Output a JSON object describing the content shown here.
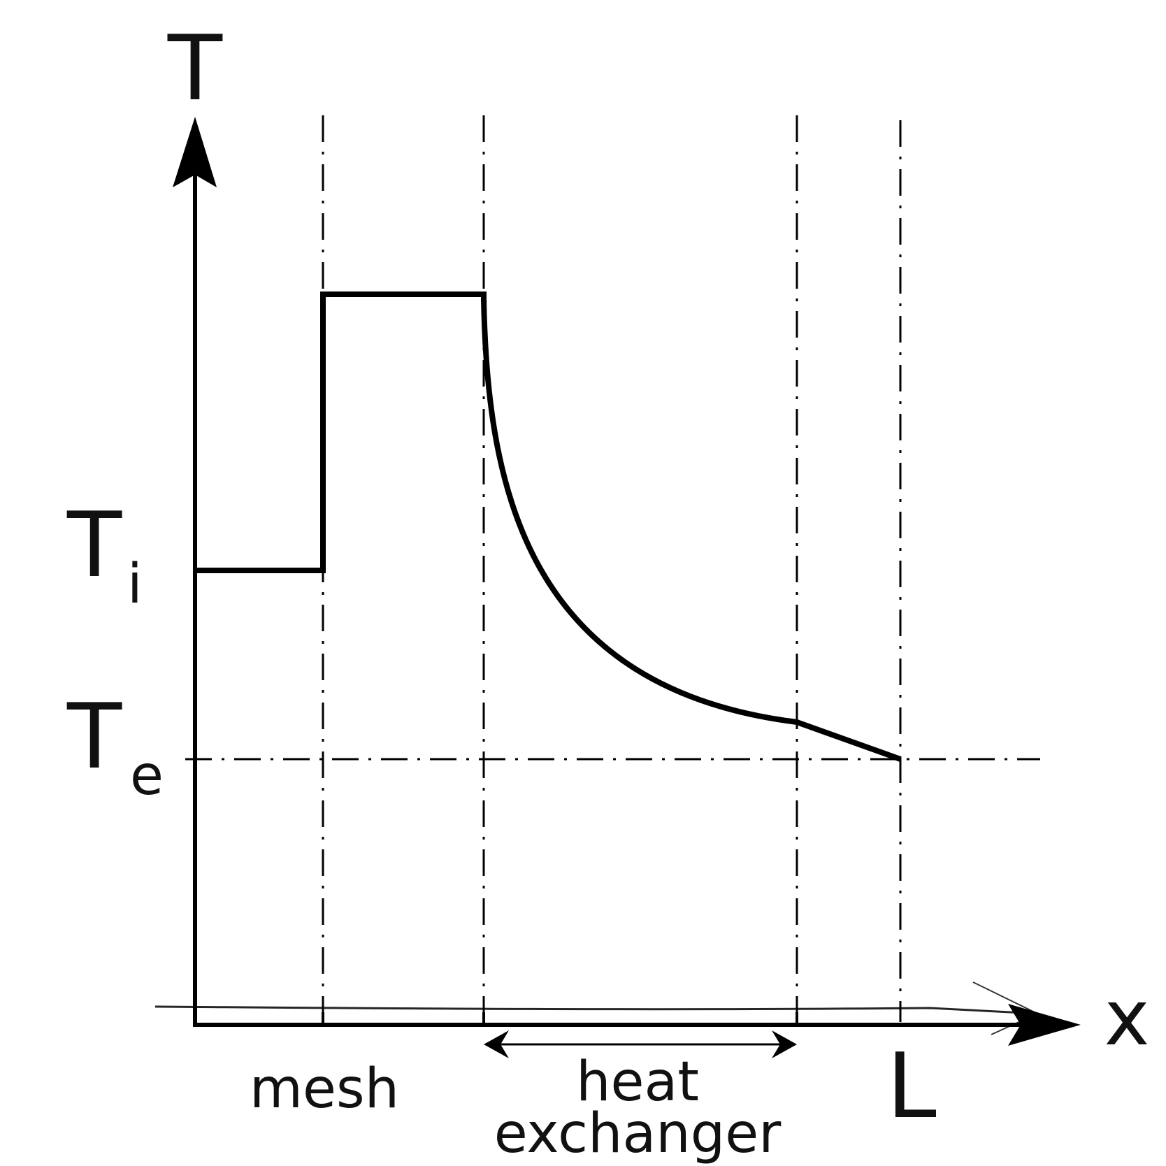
{
  "labels": {
    "y_axis": "T",
    "x_axis": "x",
    "t_i_main": "T",
    "t_i_sub": "i",
    "t_e_main": "T",
    "t_e_sub": "e",
    "mesh": "mesh",
    "heat_line1": "heat",
    "heat_line2": "exchanger",
    "length": "L"
  },
  "colors": {
    "line": "#000000",
    "text": "#111111"
  }
}
